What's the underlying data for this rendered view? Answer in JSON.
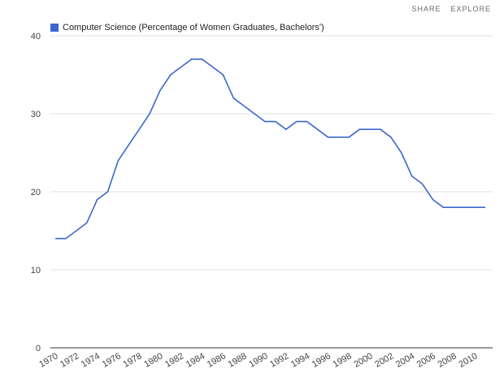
{
  "top_links": {
    "share": "SHARE",
    "explore": "EXPLORE"
  },
  "colors": {
    "series": "#3a67cc",
    "grid": "#e2e2e2",
    "axis": "#333333"
  },
  "chart_data": {
    "type": "line",
    "title": "",
    "xlabel": "",
    "ylabel": "",
    "legend_position": "top-left",
    "grid": true,
    "xlim": [
      1970,
      2011
    ],
    "ylim": [
      0,
      40
    ],
    "y_ticks": [
      0,
      10,
      20,
      30,
      40
    ],
    "x_ticks": [
      "1970",
      "1972",
      "1974",
      "1976",
      "1978",
      "1980",
      "1982",
      "1984",
      "1986",
      "1988",
      "1990",
      "1992",
      "1994",
      "1996",
      "1998",
      "2000",
      "2002",
      "2004",
      "2006",
      "2008",
      "2010"
    ],
    "series": [
      {
        "name": "Computer Science (Percentage of Women Graduates, Bachelors')",
        "x": [
          1970,
          1971,
          1972,
          1973,
          1974,
          1975,
          1976,
          1977,
          1978,
          1979,
          1980,
          1981,
          1982,
          1983,
          1984,
          1985,
          1986,
          1987,
          1988,
          1989,
          1990,
          1991,
          1992,
          1993,
          1994,
          1995,
          1996,
          1997,
          1998,
          1999,
          2000,
          2001,
          2002,
          2003,
          2004,
          2005,
          2006,
          2007,
          2008,
          2009,
          2010,
          2011
        ],
        "values": [
          14,
          14,
          15,
          16,
          19,
          20,
          24,
          26,
          28,
          30,
          33,
          35,
          36,
          37,
          37,
          36,
          35,
          32,
          31,
          30,
          29,
          29,
          28,
          29,
          29,
          28,
          27,
          27,
          27,
          28,
          28,
          28,
          27,
          25,
          22,
          21,
          19,
          18,
          18,
          18,
          18,
          18
        ]
      }
    ]
  }
}
